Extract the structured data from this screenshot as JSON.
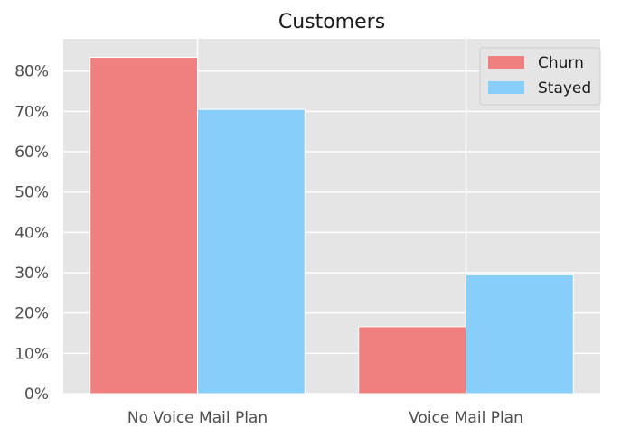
{
  "chart_data": {
    "type": "bar",
    "title": "Customers",
    "xlabel": "",
    "ylabel": "",
    "categories": [
      "No Voice Mail Plan",
      "Voice Mail Plan"
    ],
    "series": [
      {
        "name": "Churn",
        "values": [
          83.4,
          16.6
        ],
        "color": "#f08080"
      },
      {
        "name": "Stayed",
        "values": [
          70.5,
          29.5
        ],
        "color": "#87cefa"
      }
    ],
    "ylim": [
      0,
      88
    ],
    "yticks": [
      0,
      10,
      20,
      30,
      40,
      50,
      60,
      70,
      80
    ],
    "ytick_labels": [
      "0%",
      "10%",
      "20%",
      "30%",
      "40%",
      "50%",
      "60%",
      "70%",
      "80%"
    ],
    "grid": true,
    "legend_position": "top-right",
    "background_color": "#e5e5e5",
    "grid_color": "#ffffff"
  }
}
